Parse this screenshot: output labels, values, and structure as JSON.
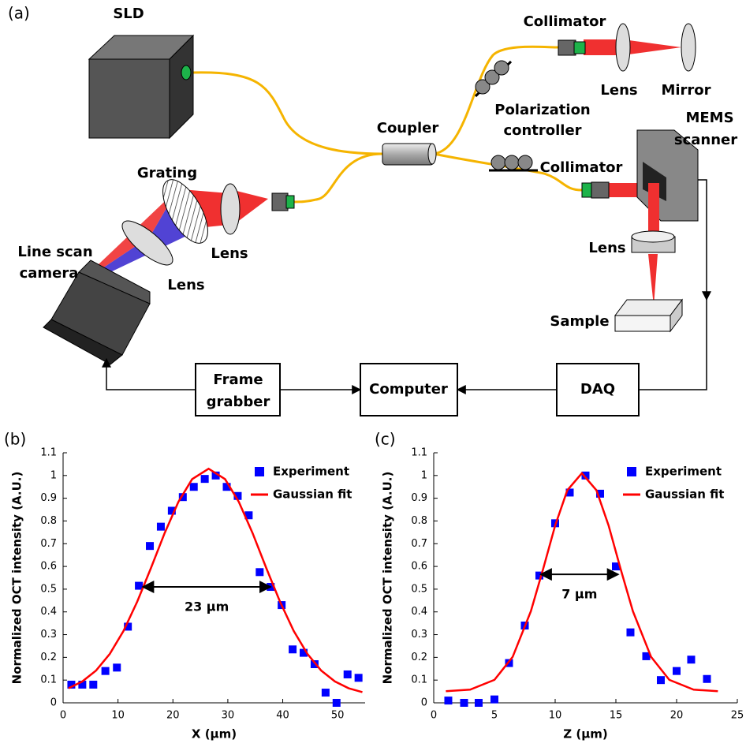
{
  "diagram": {
    "panel_label": "(a)",
    "sld": "SLD",
    "collimator_top": "Collimator",
    "lens_reference": "Lens",
    "mirror": "Mirror",
    "polarization_controller": [
      "Polarization",
      "controller"
    ],
    "coupler": "Coupler",
    "mems_scanner": [
      "MEMS",
      "scanner"
    ],
    "collimator_sample": "Collimator",
    "grating": "Grating",
    "lens_grating": "Lens",
    "line_scan_camera": [
      "Line scan",
      "camera"
    ],
    "lens_camera": "Lens",
    "lens_sample": "Lens",
    "sample": "Sample",
    "frame_grabber": [
      "Frame",
      "grabber"
    ],
    "computer": "Computer",
    "daq": "DAQ"
  },
  "chart_data": [
    {
      "type": "scatter",
      "panel_label": "(b)",
      "x_label": "X (μm)",
      "y_label": "Normalized OCT intensity (A.U.)",
      "xlim": [
        0,
        55
      ],
      "xticks": [
        0,
        10,
        20,
        30,
        40,
        50
      ],
      "ylim": [
        0,
        1.1
      ],
      "yticks": [
        0,
        0.1,
        0.2,
        0.3,
        0.4,
        0.5,
        0.6,
        0.7,
        0.8,
        0.9,
        1,
        1.1
      ],
      "legend": "upper right",
      "series": [
        {
          "name": "Experiment",
          "color": "#0000ff",
          "style": "markers",
          "x": [
            1.5,
            3.5,
            5.5,
            7.7,
            9.8,
            11.8,
            13.8,
            15.8,
            17.8,
            19.8,
            21.8,
            23.8,
            25.8,
            27.8,
            29.8,
            31.8,
            33.8,
            35.8,
            37.8,
            39.8,
            41.8,
            43.8,
            45.8,
            47.8,
            49.8,
            51.8,
            53.8
          ],
          "values": [
            0.08,
            0.08,
            0.08,
            0.14,
            0.155,
            0.335,
            0.515,
            0.69,
            0.775,
            0.845,
            0.905,
            0.95,
            0.985,
            1.0,
            0.95,
            0.91,
            0.825,
            0.575,
            0.51,
            0.43,
            0.235,
            0.22,
            0.17,
            0.045,
            0.0,
            0.125,
            0.11
          ]
        },
        {
          "name": "Gaussian fit",
          "color": "#ff0000",
          "style": "line",
          "x": [
            1,
            3.5,
            6,
            8.5,
            11,
            13.5,
            16,
            18.5,
            21,
            23.5,
            26.5,
            29.5,
            32,
            34.5,
            37,
            39.5,
            42,
            44.5,
            47,
            49.5,
            52,
            54.5
          ],
          "values": [
            0.064,
            0.094,
            0.142,
            0.215,
            0.316,
            0.445,
            0.593,
            0.747,
            0.884,
            0.984,
            1.03,
            0.984,
            0.884,
            0.747,
            0.593,
            0.445,
            0.316,
            0.215,
            0.142,
            0.094,
            0.064,
            0.047
          ]
        }
      ],
      "annotations": [
        {
          "text": "23 μm",
          "x_from": 14.5,
          "x_to": 37.8,
          "y": 0.51
        }
      ]
    },
    {
      "type": "scatter",
      "panel_label": "(c)",
      "x_label": "Z (μm)",
      "y_label": "Normalized OCT intensity (A.U.)",
      "xlim": [
        0,
        25
      ],
      "xticks": [
        0,
        5,
        10,
        15,
        20,
        25
      ],
      "ylim": [
        0,
        1.1
      ],
      "yticks": [
        0,
        0.1,
        0.2,
        0.3,
        0.4,
        0.5,
        0.6,
        0.7,
        0.8,
        0.9,
        1,
        1.1
      ],
      "legend": "upper right",
      "series": [
        {
          "name": "Experiment",
          "color": "#0000ff",
          "style": "markers",
          "x": [
            1.2,
            2.5,
            3.7,
            5,
            6.2,
            7.5,
            8.7,
            10,
            11.2,
            12.5,
            13.7,
            15,
            16.2,
            17.5,
            18.7,
            20,
            21.2,
            22.5
          ],
          "values": [
            0.01,
            0.0,
            0.0,
            0.015,
            0.175,
            0.34,
            0.56,
            0.79,
            0.925,
            1.0,
            0.92,
            0.6,
            0.31,
            0.205,
            0.1,
            0.14,
            0.19,
            0.105
          ]
        },
        {
          "name": "Gaussian fit",
          "color": "#ff0000",
          "style": "line",
          "x": [
            1,
            3,
            5,
            6.5,
            8,
            9,
            10,
            11,
            12.2,
            13.4,
            14.4,
            15.4,
            16.4,
            17.9,
            19.4,
            21.4,
            23.4
          ],
          "values": [
            0.051,
            0.058,
            0.101,
            0.202,
            0.403,
            0.587,
            0.78,
            0.935,
            1.01,
            0.935,
            0.78,
            0.587,
            0.403,
            0.202,
            0.101,
            0.058,
            0.051
          ]
        }
      ],
      "annotations": [
        {
          "text": "7 μm",
          "x_from": 8.8,
          "x_to": 15.2,
          "y": 0.565
        }
      ]
    }
  ]
}
